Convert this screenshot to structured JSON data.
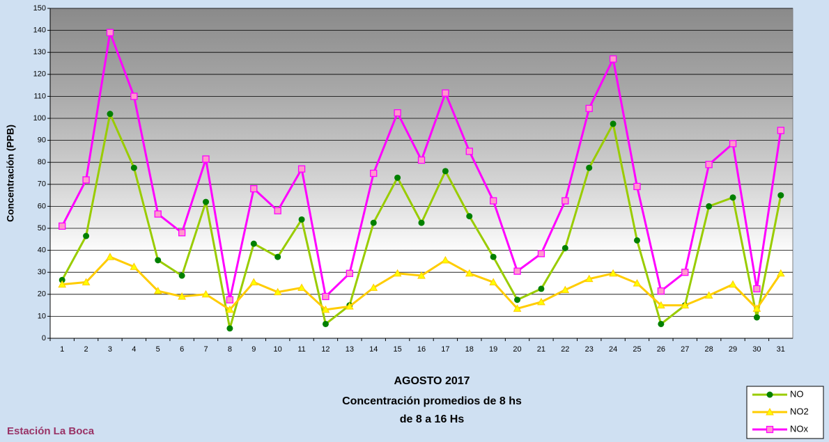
{
  "chart_data": {
    "type": "line",
    "title": [
      "AGOSTO 2017",
      "Concentración promedios de 8 hs",
      "de 8 a 16 Hs"
    ],
    "station": "Estación La Boca",
    "y_label": "Concentración (PPB)",
    "categories": [
      "1",
      "2",
      "3",
      "4",
      "5",
      "6",
      "7",
      "8",
      "9",
      "10",
      "11",
      "12",
      "13",
      "14",
      "15",
      "16",
      "17",
      "18",
      "19",
      "20",
      "21",
      "22",
      "23",
      "24",
      "25",
      "26",
      "27",
      "28",
      "29",
      "30",
      "31"
    ],
    "series": [
      {
        "name": "NO",
        "color": "#99cc00",
        "marker_color": "#008000",
        "marker": "circle",
        "values": [
          26.5,
          46.5,
          102,
          77.5,
          35.5,
          28.5,
          62,
          4.5,
          43,
          37,
          54,
          6.5,
          15,
          52.5,
          73,
          52.5,
          76,
          55.5,
          37,
          17.5,
          22.5,
          41,
          77.5,
          97.5,
          44.5,
          6.5,
          15,
          60,
          64,
          9.5,
          65
        ]
      },
      {
        "name": "NO2",
        "color": "#ffcc00",
        "marker_color": "#ffff00",
        "marker": "triangle",
        "values": [
          24.5,
          25.5,
          37,
          32.5,
          21.5,
          19,
          20,
          13,
          25.5,
          21,
          23,
          13,
          14.5,
          23,
          29.5,
          28.5,
          35.5,
          29.5,
          25.5,
          13.5,
          16.5,
          22,
          27,
          29.5,
          25,
          15,
          15,
          19.5,
          24.5,
          13.5,
          29.5
        ]
      },
      {
        "name": "NOx",
        "color": "#ff00ff",
        "marker_color": "#ff99cc",
        "marker": "square",
        "values": [
          51,
          72,
          139,
          110,
          56.5,
          48,
          81.5,
          17.5,
          68,
          58,
          77,
          19,
          29.5,
          75,
          102.5,
          81,
          111.5,
          85,
          62.5,
          30.5,
          38.5,
          62.5,
          104.5,
          127,
          69,
          21.5,
          30,
          79,
          88.5,
          22.5,
          94.5
        ]
      }
    ],
    "ylim": [
      0,
      150
    ],
    "yticks": [
      0,
      10,
      20,
      30,
      40,
      50,
      60,
      70,
      80,
      90,
      100,
      110,
      120,
      130,
      140,
      150
    ],
    "grid": true,
    "legend": "bottom-right"
  }
}
